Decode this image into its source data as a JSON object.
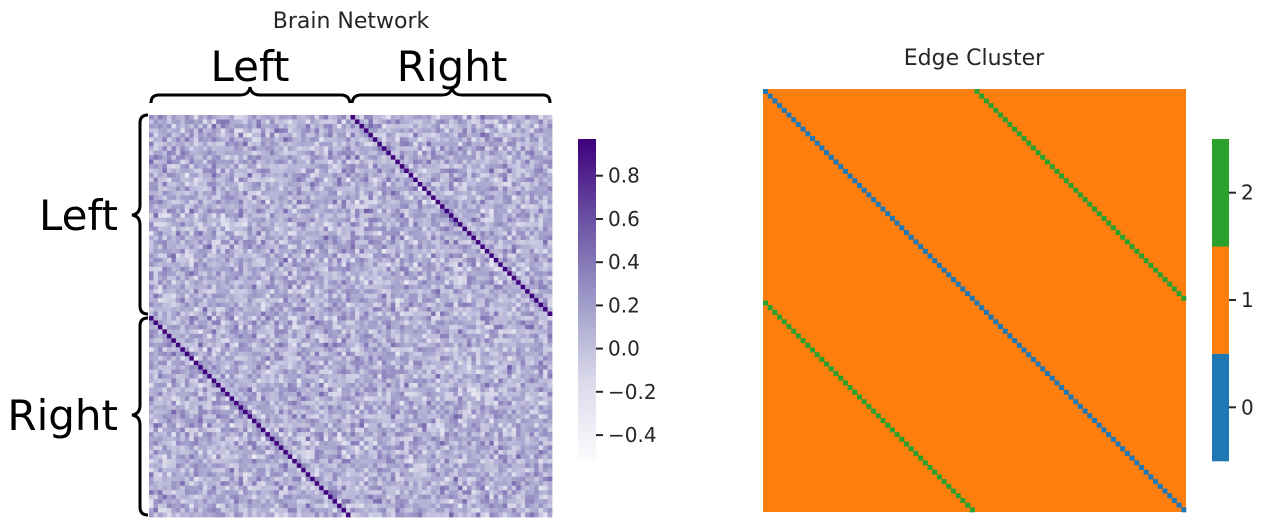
{
  "chart_data": [
    {
      "type": "heatmap",
      "title": "Brain Network",
      "size": 90,
      "groups": {
        "top": [
          "Left",
          "Right"
        ],
        "left": [
          "Left",
          "Right"
        ]
      },
      "colormap": [
        "#fcfbfd",
        "#dadaeb",
        "#9e9ac8",
        "#6a51a3",
        "#3f007d"
      ],
      "colorbar": {
        "vmin": -0.52,
        "vmax": 0.97,
        "ticks": [
          0.8,
          0.6,
          0.4,
          0.2,
          0.0,
          -0.2,
          -0.4
        ],
        "tick_labels": [
          "0.8",
          "0.6",
          "0.4",
          "0.2",
          "0.0",
          "−0.2",
          "−0.4"
        ]
      },
      "description_values": {
        "offdiagonal_typical_range": [
          -0.4,
          0.5
        ],
        "homologous_diagonal_value": 0.95
      }
    },
    {
      "type": "heatmap",
      "title": "Edge Cluster",
      "size": 90,
      "categories": [
        0,
        1,
        2
      ],
      "colors": {
        "0": "#1f77b4",
        "1": "#ff7f0e",
        "2": "#2ca02c"
      },
      "pattern": {
        "main_diagonal": 0,
        "offset_diagonals": 2,
        "offset": 45,
        "background": 1
      },
      "colorbar": {
        "vmin": -0.5,
        "vmax": 2.5,
        "ticks": [
          2,
          1,
          0
        ],
        "tick_labels": [
          "2",
          "1",
          "0"
        ]
      }
    }
  ]
}
